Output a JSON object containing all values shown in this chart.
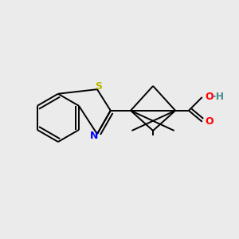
{
  "bg_color": "#ebebeb",
  "bond_color": "#000000",
  "S_color": "#b8b800",
  "N_color": "#0000ff",
  "O_color": "#ff0000",
  "H_color": "#4a9090",
  "line_width": 1.4,
  "fig_size": [
    3.0,
    3.0
  ],
  "dpi": 100,
  "xlim": [
    -1.05,
    1.05
  ],
  "ylim": [
    -0.75,
    0.85
  ]
}
